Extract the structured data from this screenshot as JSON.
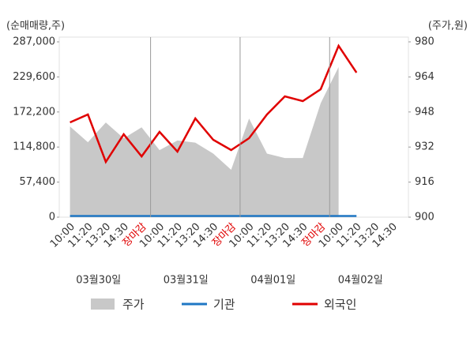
{
  "chart_data": {
    "type": "line",
    "y_title": "(순매매량,주)",
    "y2_title": "(주가,원)",
    "categories": [
      "10:00",
      "11:20",
      "13:20",
      "14:30",
      "장마감",
      "10:00",
      "11:20",
      "13:20",
      "14:30",
      "장마감",
      "10:00",
      "11:20",
      "13:20",
      "14:30",
      "장마감",
      "10:00",
      "11:20",
      "13:20",
      "14:30"
    ],
    "category_colors": [
      "#333",
      "#333",
      "#333",
      "#333",
      "#e00000",
      "#333",
      "#333",
      "#333",
      "#333",
      "#e00000",
      "#333",
      "#333",
      "#333",
      "#333",
      "#e00000",
      "#333",
      "#333",
      "#333",
      "#333"
    ],
    "dates": [
      "03월30일",
      "03월31일",
      "04월01일",
      "04월02일"
    ],
    "series": [
      {
        "name": "주가",
        "type": "area",
        "axis": "y2",
        "color": "#c8c8c8",
        "values": [
          941.4,
          934.2,
          943.2,
          936,
          941,
          930.6,
          935,
          934,
          929,
          921.6,
          945,
          929,
          927,
          927,
          952,
          968.5,
          null,
          null,
          null
        ]
      },
      {
        "name": "기관",
        "type": "line",
        "color": "#1f77c4",
        "values": [
          2000,
          2000,
          2000,
          2000,
          2000,
          2000,
          2000,
          2000,
          2000,
          2000,
          2000,
          2000,
          2000,
          2000,
          2000,
          2000,
          2000,
          null,
          null
        ]
      },
      {
        "name": "외국인",
        "type": "line",
        "color": "#e00000",
        "values": [
          155100,
          168100,
          90500,
          135700,
          99500,
          139600,
          107300,
          161600,
          126700,
          109900,
          129300,
          168100,
          197800,
          190000,
          209400,
          280500,
          236600,
          null,
          null
        ]
      }
    ],
    "ylim": [
      0,
      287000
    ],
    "yticks": [
      0,
      {
        "value": 57400,
        "label": "57,400"
      },
      {
        "value": 114800,
        "label": "114,800"
      },
      {
        "value": 172200,
        "label": "172,200"
      },
      {
        "value": 229600,
        "label": "229,600"
      },
      {
        "value": 287000,
        "label": "287,000"
      }
    ],
    "y2lim": [
      900,
      980
    ],
    "y2ticks": [
      900,
      916,
      932,
      948,
      964,
      980
    ]
  }
}
